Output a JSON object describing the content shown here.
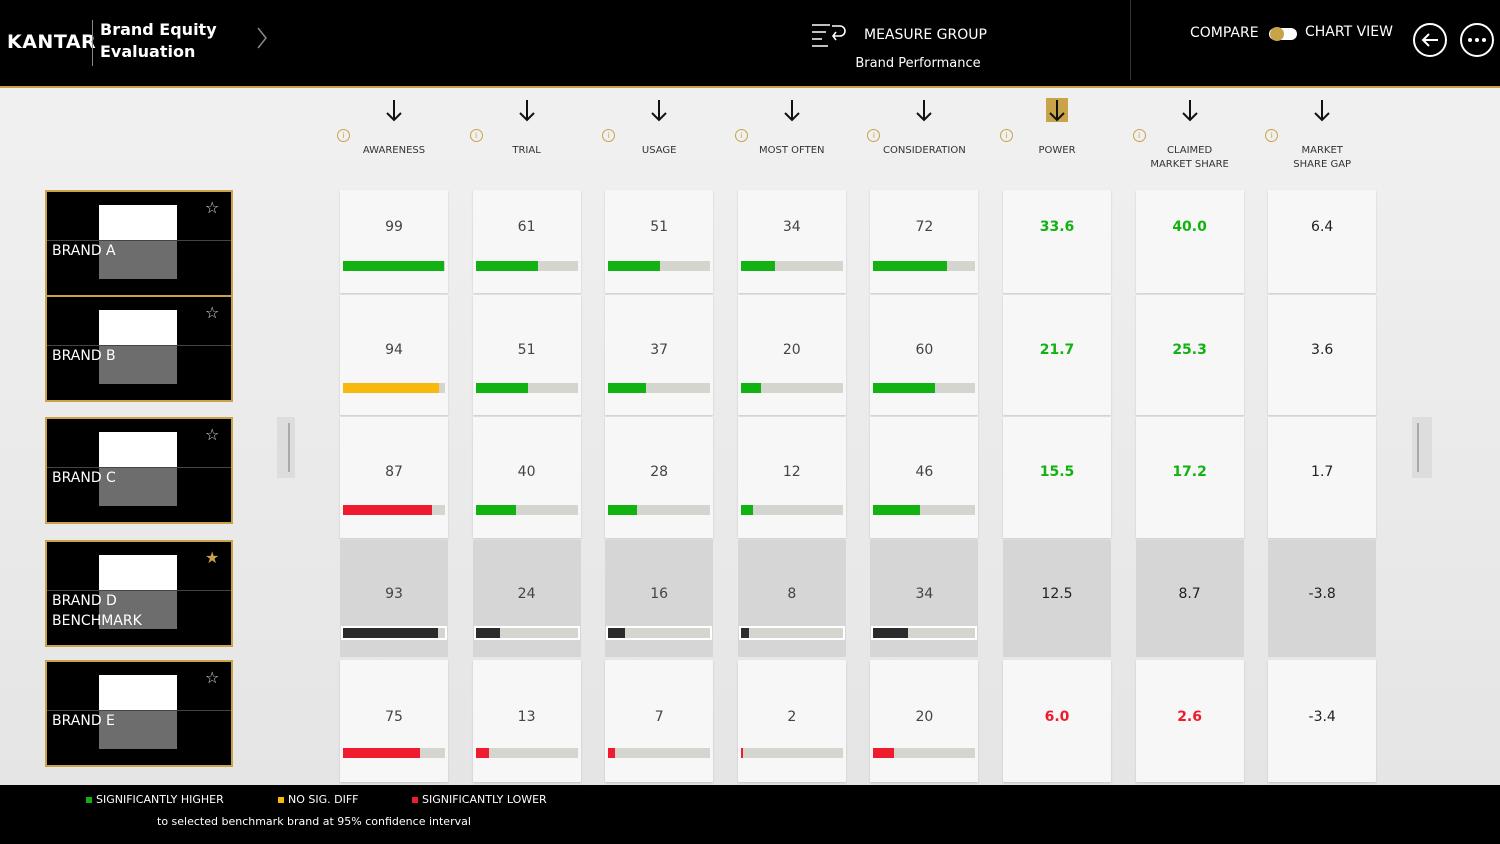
{
  "header": {
    "logo": "KANTAR",
    "title_lines": [
      "Brand Equity",
      "Evaluation"
    ],
    "measure_group_label": "MEASURE GROUP",
    "measure_group": "Brand Performance",
    "compare": "COMPARE",
    "chart_view": "CHART VIEW"
  },
  "bar_range": [
    0,
    100
  ],
  "columns": [
    {
      "label_lines": [
        "AWARENESS"
      ],
      "bars": true,
      "sorted": false
    },
    {
      "label_lines": [
        "TRIAL"
      ],
      "bars": true,
      "sorted": false
    },
    {
      "label_lines": [
        "USAGE"
      ],
      "bars": true,
      "sorted": false
    },
    {
      "label_lines": [
        "MOST OFTEN"
      ],
      "bars": true,
      "sorted": false
    },
    {
      "label_lines": [
        "CONSIDERATION"
      ],
      "bars": true,
      "sorted": false
    },
    {
      "label_lines": [
        "POWER"
      ],
      "bars": false,
      "sorted": true
    },
    {
      "label_lines": [
        "CLAIMED",
        "MARKET SHARE"
      ],
      "bars": false,
      "sorted": false
    },
    {
      "label_lines": [
        "MARKET",
        "SHARE GAP"
      ],
      "bars": false,
      "sorted": false
    }
  ],
  "rows": [
    {
      "brand_lines": [
        "BRAND A"
      ],
      "starred": false,
      "benchmark": false,
      "values": [
        99,
        61,
        51,
        34,
        72,
        33.6,
        40,
        6.4
      ],
      "value_labels": [
        "99",
        "61",
        "51",
        "34",
        "72",
        "33.6",
        "40.0",
        "6.4"
      ],
      "colors": [
        "#13b213",
        "#13b213",
        "#13b213",
        "#13b213",
        "#13b213",
        "#13b213",
        "#13b213",
        "#222222"
      ]
    },
    {
      "brand_lines": [
        "BRAND B"
      ],
      "starred": false,
      "benchmark": false,
      "values": [
        94,
        51,
        37,
        20,
        60,
        21.7,
        25.3,
        3.6
      ],
      "value_labels": [
        "94",
        "51",
        "37",
        "20",
        "60",
        "21.7",
        "25.3",
        "3.6"
      ],
      "colors": [
        "#f7b90e",
        "#13b213",
        "#13b213",
        "#13b213",
        "#13b213",
        "#13b213",
        "#13b213",
        "#222222"
      ]
    },
    {
      "brand_lines": [
        "BRAND C"
      ],
      "starred": false,
      "benchmark": false,
      "values": [
        87,
        40,
        28,
        12,
        46,
        15.5,
        17.2,
        1.7
      ],
      "value_labels": [
        "87",
        "40",
        "28",
        "12",
        "46",
        "15.5",
        "17.2",
        "1.7"
      ],
      "colors": [
        "#ee1c2e",
        "#13b213",
        "#13b213",
        "#13b213",
        "#13b213",
        "#13b213",
        "#13b213",
        "#222222"
      ]
    },
    {
      "brand_lines": [
        "BRAND D",
        "BENCHMARK"
      ],
      "starred": true,
      "benchmark": true,
      "values": [
        93,
        24,
        16,
        8,
        34,
        12.5,
        8.7,
        -3.8
      ],
      "value_labels": [
        "93",
        "24",
        "16",
        "8",
        "34",
        "12.5",
        "8.7",
        "-3.8"
      ],
      "colors": [
        "#2b2b2b",
        "#2b2b2b",
        "#2b2b2b",
        "#2b2b2b",
        "#2b2b2b",
        "#222222",
        "#222222",
        "#222222"
      ]
    },
    {
      "brand_lines": [
        "BRAND E"
      ],
      "starred": false,
      "benchmark": false,
      "values": [
        75,
        13,
        7,
        2,
        20,
        6,
        2.6,
        -3.4
      ],
      "value_labels": [
        "75",
        "13",
        "7",
        "2",
        "20",
        "6.0",
        "2.6",
        "-3.4"
      ],
      "colors": [
        "#ee1c2e",
        "#ee1c2e",
        "#ee1c2e",
        "#ee1c2e",
        "#ee1c2e",
        "#ee1c2e",
        "#ee1c2e",
        "#222222"
      ]
    }
  ],
  "legend": {
    "items": [
      {
        "label": "SIGNIFICANTLY HIGHER",
        "color": "#13b213"
      },
      {
        "label": "NO SIG. DIFF",
        "color": "#f7b90e"
      },
      {
        "label": "SIGNIFICANTLY LOWER",
        "color": "#ee1c2e"
      }
    ],
    "note": "to selected benchmark brand at 95% confidence interval"
  }
}
